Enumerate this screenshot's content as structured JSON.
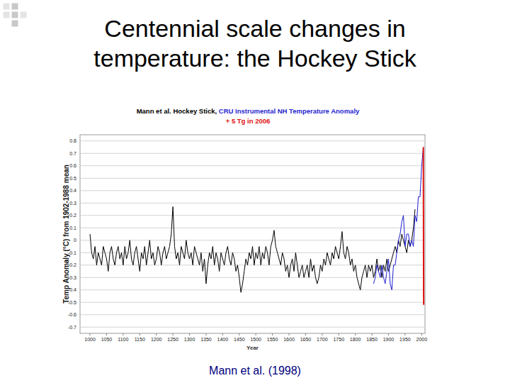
{
  "slide": {
    "title": [
      "Centennial scale changes in",
      "temperature: the Hockey Stick"
    ],
    "caption": "Mann et al. (1998)"
  },
  "chart_data": {
    "type": "line",
    "x_label": "Year",
    "y_label": "Temp Anomaly (°C) from 1902-1988 mean",
    "xlim": [
      970,
      2010
    ],
    "ylim": [
      -0.75,
      0.85
    ],
    "xticks": [
      1000,
      1050,
      1100,
      1150,
      1200,
      1250,
      1300,
      1350,
      1400,
      1450,
      1500,
      1550,
      1600,
      1650,
      1700,
      1750,
      1800,
      1850,
      1900,
      1950,
      2000
    ],
    "yticks": [
      0.8,
      0.7,
      0.6,
      0.5,
      0.4,
      0.3,
      0.2,
      0.1,
      0,
      -0.1,
      -0.2,
      -0.3,
      -0.4,
      -0.5,
      -0.6,
      -0.7
    ],
    "grid": true,
    "series": [
      {
        "name": "Mann et al. Hockey Stick,",
        "color": "#000000",
        "x": [
          1000,
          1005,
          1010,
          1015,
          1020,
          1025,
          1030,
          1035,
          1040,
          1045,
          1050,
          1055,
          1060,
          1065,
          1070,
          1075,
          1080,
          1085,
          1090,
          1095,
          1100,
          1105,
          1110,
          1115,
          1120,
          1125,
          1130,
          1135,
          1140,
          1145,
          1150,
          1155,
          1160,
          1165,
          1170,
          1175,
          1180,
          1185,
          1190,
          1195,
          1200,
          1205,
          1210,
          1215,
          1220,
          1225,
          1230,
          1235,
          1240,
          1245,
          1250,
          1255,
          1260,
          1265,
          1270,
          1275,
          1280,
          1285,
          1290,
          1295,
          1300,
          1305,
          1310,
          1315,
          1320,
          1325,
          1330,
          1335,
          1340,
          1345,
          1350,
          1355,
          1360,
          1365,
          1370,
          1375,
          1380,
          1385,
          1390,
          1395,
          1400,
          1405,
          1410,
          1415,
          1420,
          1425,
          1430,
          1435,
          1440,
          1445,
          1450,
          1455,
          1460,
          1465,
          1470,
          1475,
          1480,
          1485,
          1490,
          1495,
          1500,
          1505,
          1510,
          1515,
          1520,
          1525,
          1530,
          1535,
          1540,
          1545,
          1550,
          1555,
          1560,
          1565,
          1570,
          1575,
          1580,
          1585,
          1590,
          1595,
          1600,
          1605,
          1610,
          1615,
          1620,
          1625,
          1630,
          1635,
          1640,
          1645,
          1650,
          1655,
          1660,
          1665,
          1670,
          1675,
          1680,
          1685,
          1690,
          1695,
          1700,
          1705,
          1710,
          1715,
          1720,
          1725,
          1730,
          1735,
          1740,
          1745,
          1750,
          1755,
          1760,
          1765,
          1770,
          1775,
          1780,
          1785,
          1790,
          1795,
          1800,
          1805,
          1810,
          1815,
          1820,
          1825,
          1830,
          1835,
          1840,
          1845,
          1850,
          1855,
          1860,
          1865,
          1870,
          1875,
          1880,
          1885,
          1890,
          1895,
          1900,
          1905,
          1910,
          1915,
          1920,
          1925,
          1930,
          1935,
          1940,
          1945,
          1950,
          1955,
          1960,
          1965,
          1970,
          1975,
          1980
        ],
        "values": [
          0.05,
          -0.1,
          -0.15,
          -0.05,
          -0.2,
          -0.1,
          -0.15,
          -0.2,
          -0.05,
          -0.1,
          -0.15,
          -0.25,
          -0.1,
          -0.05,
          -0.15,
          -0.2,
          -0.1,
          -0.05,
          -0.15,
          -0.1,
          -0.2,
          -0.05,
          -0.15,
          -0.1,
          0.0,
          -0.15,
          -0.2,
          -0.1,
          -0.05,
          -0.15,
          -0.25,
          -0.1,
          -0.15,
          -0.05,
          -0.2,
          -0.1,
          0.0,
          -0.15,
          -0.1,
          -0.2,
          -0.15,
          -0.05,
          -0.1,
          -0.2,
          -0.1,
          -0.05,
          -0.15,
          -0.1,
          -0.05,
          0.05,
          0.27,
          -0.05,
          -0.15,
          -0.1,
          -0.2,
          -0.05,
          -0.1,
          -0.15,
          0.0,
          -0.1,
          -0.15,
          -0.1,
          -0.2,
          -0.05,
          -0.1,
          -0.15,
          -0.2,
          -0.1,
          -0.25,
          -0.15,
          -0.35,
          -0.2,
          -0.1,
          -0.15,
          -0.05,
          -0.2,
          -0.1,
          -0.15,
          -0.25,
          -0.1,
          -0.15,
          -0.2,
          -0.1,
          -0.05,
          -0.15,
          -0.2,
          -0.1,
          -0.15,
          -0.25,
          -0.2,
          -0.3,
          -0.42,
          -0.35,
          -0.25,
          -0.15,
          -0.2,
          -0.1,
          -0.15,
          -0.05,
          -0.2,
          -0.1,
          -0.15,
          -0.05,
          -0.2,
          -0.1,
          -0.15,
          -0.05,
          -0.1,
          -0.2,
          -0.05,
          0.0,
          0.08,
          -0.05,
          -0.1,
          -0.15,
          -0.2,
          -0.1,
          -0.15,
          -0.25,
          -0.2,
          -0.3,
          -0.2,
          -0.15,
          -0.25,
          -0.1,
          -0.2,
          -0.3,
          -0.25,
          -0.2,
          -0.3,
          -0.25,
          -0.2,
          -0.3,
          -0.15,
          -0.25,
          -0.2,
          -0.3,
          -0.35,
          -0.3,
          -0.2,
          -0.25,
          -0.15,
          -0.2,
          -0.1,
          -0.15,
          -0.2,
          -0.1,
          -0.15,
          -0.05,
          -0.1,
          -0.15,
          -0.05,
          0.07,
          -0.1,
          -0.15,
          -0.05,
          -0.1,
          -0.2,
          -0.15,
          -0.25,
          -0.2,
          -0.3,
          -0.35,
          -0.4,
          -0.3,
          -0.25,
          -0.2,
          -0.3,
          -0.2,
          -0.25,
          -0.2,
          -0.3,
          -0.25,
          -0.15,
          -0.25,
          -0.2,
          -0.3,
          -0.2,
          -0.25,
          -0.15,
          -0.25,
          -0.2,
          -0.15,
          -0.1,
          -0.05,
          -0.1,
          0.0,
          -0.05,
          0.05,
          0.0,
          -0.05,
          -0.1,
          0.0,
          -0.05,
          0.0,
          0.1,
          0.25
        ]
      },
      {
        "name": "CRU Instrumental NH Temperature Anomaly",
        "color": "#1f1fd0",
        "x": [
          1855,
          1860,
          1865,
          1870,
          1875,
          1880,
          1885,
          1890,
          1895,
          1900,
          1905,
          1910,
          1915,
          1920,
          1925,
          1930,
          1935,
          1940,
          1945,
          1950,
          1955,
          1960,
          1965,
          1970,
          1975,
          1980,
          1985,
          1990,
          1995,
          2000,
          2005
        ],
        "values": [
          -0.35,
          -0.3,
          -0.2,
          -0.25,
          -0.3,
          -0.2,
          -0.3,
          -0.35,
          -0.25,
          -0.15,
          -0.35,
          -0.4,
          -0.2,
          -0.2,
          -0.1,
          0.0,
          0.05,
          0.15,
          0.2,
          -0.05,
          0.05,
          0.05,
          -0.05,
          0.0,
          -0.05,
          0.2,
          0.15,
          0.35,
          0.35,
          0.6,
          0.75
        ]
      },
      {
        "name": "+ 5 Tg in 2006",
        "color": "#e01010",
        "x": [
          2005,
          2006
        ],
        "values": [
          0.75,
          -0.52
        ]
      }
    ]
  }
}
